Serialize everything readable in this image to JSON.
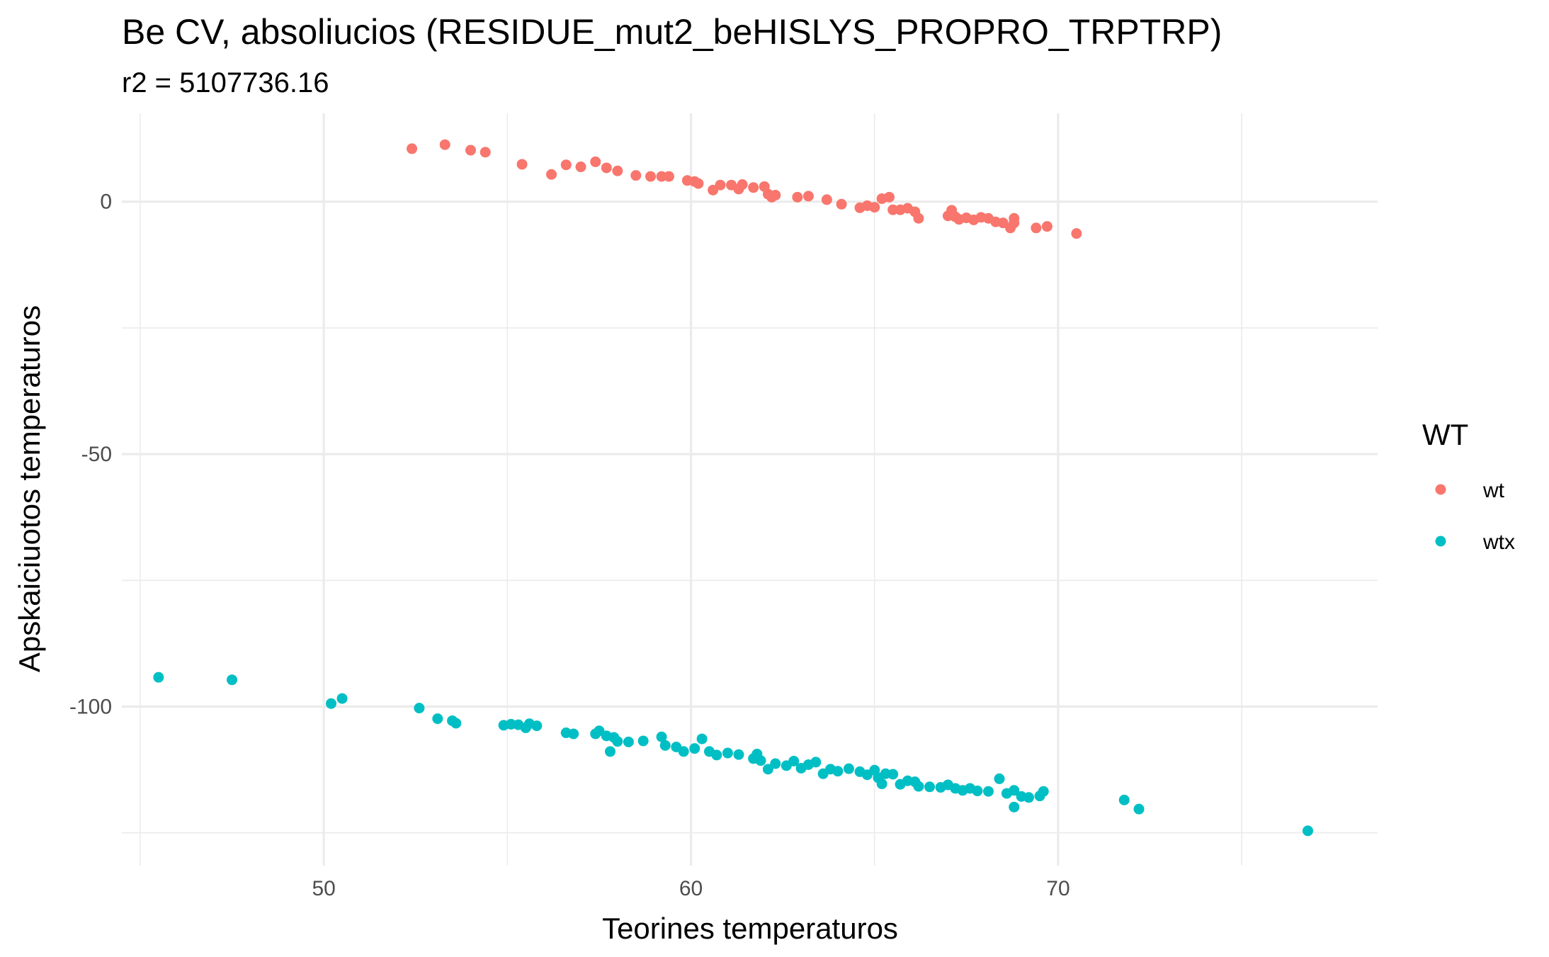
{
  "chart_data": {
    "type": "scatter",
    "title": "Be CV, absoliucios (RESIDUE_mut2_beHISLYS_PROPRO_TRPTRP)",
    "subtitle": "r2 = 5107736.16",
    "xlabel": "Teorines temperaturos",
    "ylabel": "Apskaiciuotos temperaturos",
    "xlim": [
      44.5,
      78.7
    ],
    "ylim": [
      -131.5,
      17.5
    ],
    "x_ticks": [
      50,
      60,
      70
    ],
    "x_tick_labels": [
      "50",
      "60",
      "70"
    ],
    "y_ticks": [
      0,
      -50,
      -100
    ],
    "y_tick_labels": [
      "0",
      "-50",
      "-100"
    ],
    "grid": true,
    "legend": {
      "title": "WT",
      "placement": "right"
    },
    "series": [
      {
        "name": "wt",
        "color": "#F8766D",
        "points": [
          [
            52.4,
            10.5
          ],
          [
            53.3,
            11.3
          ],
          [
            54.0,
            10.2
          ],
          [
            54.4,
            9.8
          ],
          [
            55.4,
            7.4
          ],
          [
            56.2,
            5.4
          ],
          [
            56.6,
            7.3
          ],
          [
            57.0,
            6.9
          ],
          [
            57.4,
            7.9
          ],
          [
            57.7,
            6.7
          ],
          [
            58.0,
            6.1
          ],
          [
            58.5,
            5.2
          ],
          [
            58.9,
            5.0
          ],
          [
            59.2,
            5.0
          ],
          [
            59.4,
            5.0
          ],
          [
            59.9,
            4.2
          ],
          [
            60.1,
            4.0
          ],
          [
            60.2,
            3.6
          ],
          [
            60.6,
            2.3
          ],
          [
            60.8,
            3.3
          ],
          [
            61.1,
            3.3
          ],
          [
            61.3,
            2.5
          ],
          [
            61.4,
            3.4
          ],
          [
            61.7,
            2.8
          ],
          [
            62.0,
            3.0
          ],
          [
            62.1,
            1.5
          ],
          [
            62.2,
            0.9
          ],
          [
            62.3,
            1.3
          ],
          [
            62.9,
            0.9
          ],
          [
            63.2,
            1.1
          ],
          [
            63.7,
            0.4
          ],
          [
            64.1,
            -0.5
          ],
          [
            64.6,
            -1.2
          ],
          [
            64.8,
            -0.8
          ],
          [
            65.0,
            -1.1
          ],
          [
            65.2,
            0.6
          ],
          [
            65.4,
            0.9
          ],
          [
            65.5,
            -1.6
          ],
          [
            65.7,
            -1.6
          ],
          [
            65.9,
            -1.3
          ],
          [
            66.1,
            -2.0
          ],
          [
            66.2,
            -3.3
          ],
          [
            67.0,
            -2.8
          ],
          [
            67.1,
            -1.7
          ],
          [
            67.2,
            -3.0
          ],
          [
            67.3,
            -3.5
          ],
          [
            67.5,
            -3.2
          ],
          [
            67.7,
            -3.6
          ],
          [
            67.9,
            -3.1
          ],
          [
            68.1,
            -3.3
          ],
          [
            68.3,
            -4.0
          ],
          [
            68.5,
            -4.2
          ],
          [
            68.7,
            -5.2
          ],
          [
            68.8,
            -4.2
          ],
          [
            68.8,
            -3.3
          ],
          [
            69.4,
            -5.2
          ],
          [
            69.7,
            -4.9
          ],
          [
            70.5,
            -6.3
          ]
        ]
      },
      {
        "name": "wtx",
        "color": "#00BFC4",
        "points": [
          [
            45.5,
            -94.2
          ],
          [
            47.5,
            -94.7
          ],
          [
            50.2,
            -99.4
          ],
          [
            50.5,
            -98.4
          ],
          [
            52.6,
            -100.3
          ],
          [
            53.1,
            -102.4
          ],
          [
            53.5,
            -102.8
          ],
          [
            53.6,
            -103.3
          ],
          [
            54.9,
            -103.7
          ],
          [
            55.1,
            -103.5
          ],
          [
            55.3,
            -103.6
          ],
          [
            55.5,
            -104.2
          ],
          [
            55.6,
            -103.4
          ],
          [
            55.8,
            -103.8
          ],
          [
            56.6,
            -105.2
          ],
          [
            56.8,
            -105.4
          ],
          [
            57.4,
            -105.4
          ],
          [
            57.5,
            -104.8
          ],
          [
            57.7,
            -105.8
          ],
          [
            57.8,
            -108.9
          ],
          [
            57.9,
            -106.1
          ],
          [
            58.0,
            -106.9
          ],
          [
            58.3,
            -107.0
          ],
          [
            58.7,
            -106.8
          ],
          [
            59.2,
            -106.0
          ],
          [
            59.3,
            -107.7
          ],
          [
            59.6,
            -108.0
          ],
          [
            59.8,
            -108.9
          ],
          [
            60.1,
            -108.3
          ],
          [
            60.3,
            -106.4
          ],
          [
            60.5,
            -108.9
          ],
          [
            60.7,
            -109.6
          ],
          [
            61.0,
            -109.2
          ],
          [
            61.3,
            -109.5
          ],
          [
            61.7,
            -110.3
          ],
          [
            61.8,
            -109.4
          ],
          [
            61.9,
            -110.7
          ],
          [
            62.1,
            -112.4
          ],
          [
            62.3,
            -111.3
          ],
          [
            62.6,
            -111.7
          ],
          [
            62.8,
            -110.8
          ],
          [
            63.0,
            -112.2
          ],
          [
            63.2,
            -111.5
          ],
          [
            63.4,
            -111.0
          ],
          [
            63.6,
            -113.3
          ],
          [
            63.8,
            -112.4
          ],
          [
            64.0,
            -112.8
          ],
          [
            64.3,
            -112.3
          ],
          [
            64.6,
            -112.9
          ],
          [
            64.8,
            -113.5
          ],
          [
            65.0,
            -112.6
          ],
          [
            65.1,
            -114.1
          ],
          [
            65.2,
            -115.3
          ],
          [
            65.3,
            -113.3
          ],
          [
            65.5,
            -113.4
          ],
          [
            65.7,
            -115.4
          ],
          [
            65.9,
            -114.7
          ],
          [
            66.1,
            -114.9
          ],
          [
            66.2,
            -115.8
          ],
          [
            66.5,
            -115.9
          ],
          [
            66.8,
            -116.0
          ],
          [
            67.0,
            -115.5
          ],
          [
            67.2,
            -116.2
          ],
          [
            67.4,
            -116.6
          ],
          [
            67.6,
            -116.2
          ],
          [
            67.8,
            -116.7
          ],
          [
            68.1,
            -116.8
          ],
          [
            68.4,
            -114.3
          ],
          [
            68.6,
            -117.2
          ],
          [
            68.8,
            -116.6
          ],
          [
            68.8,
            -119.9
          ],
          [
            69.0,
            -117.8
          ],
          [
            69.2,
            -118.0
          ],
          [
            69.5,
            -117.7
          ],
          [
            69.6,
            -116.8
          ],
          [
            71.8,
            -118.5
          ],
          [
            72.2,
            -120.3
          ],
          [
            76.8,
            -124.6
          ]
        ]
      }
    ]
  }
}
